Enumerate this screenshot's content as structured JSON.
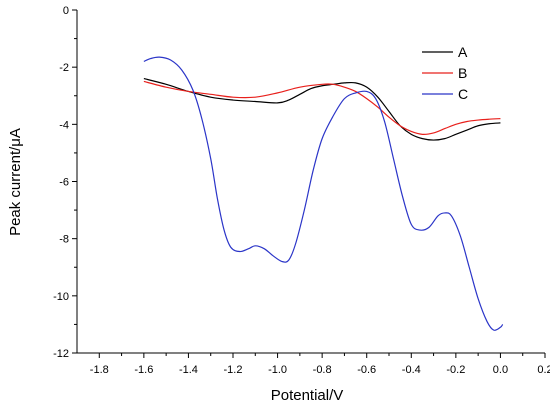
{
  "chart_data": {
    "type": "line",
    "xlabel": "Potential/V",
    "ylabel": "Peak current/μA",
    "xlim": [
      -1.9,
      0.2
    ],
    "ylim": [
      -12,
      0
    ],
    "x_ticks": [
      -1.8,
      -1.6,
      -1.4,
      -1.2,
      -1.0,
      -0.8,
      -0.6,
      -0.4,
      -0.2,
      0.0,
      0.2
    ],
    "x_tick_labels": [
      "-1.8",
      "-1.6",
      "-1.4",
      "-1.2",
      "-1.0",
      "-0.8",
      "-0.6",
      "-0.4",
      "-0.2",
      "0.0",
      "0.2"
    ],
    "y_ticks": [
      -12,
      -10,
      -8,
      -6,
      -4,
      -2,
      0
    ],
    "y_tick_labels": [
      "-12",
      "-10",
      "-8",
      "-6",
      "-4",
      "-2",
      "0"
    ],
    "grid": false,
    "legend_position": "top-right",
    "series": [
      {
        "name": "A",
        "color": "#000000",
        "points": [
          [
            -1.6,
            -2.4
          ],
          [
            -1.5,
            -2.6
          ],
          [
            -1.4,
            -2.85
          ],
          [
            -1.3,
            -3.05
          ],
          [
            -1.2,
            -3.15
          ],
          [
            -1.1,
            -3.2
          ],
          [
            -1.0,
            -3.25
          ],
          [
            -0.95,
            -3.15
          ],
          [
            -0.9,
            -2.95
          ],
          [
            -0.85,
            -2.75
          ],
          [
            -0.8,
            -2.65
          ],
          [
            -0.75,
            -2.6
          ],
          [
            -0.7,
            -2.55
          ],
          [
            -0.65,
            -2.55
          ],
          [
            -0.6,
            -2.7
          ],
          [
            -0.55,
            -3.05
          ],
          [
            -0.5,
            -3.55
          ],
          [
            -0.45,
            -4.05
          ],
          [
            -0.4,
            -4.35
          ],
          [
            -0.35,
            -4.5
          ],
          [
            -0.3,
            -4.55
          ],
          [
            -0.25,
            -4.5
          ],
          [
            -0.2,
            -4.35
          ],
          [
            -0.15,
            -4.2
          ],
          [
            -0.1,
            -4.05
          ],
          [
            -0.05,
            -3.98
          ],
          [
            0.0,
            -3.95
          ]
        ]
      },
      {
        "name": "B",
        "color": "#e8201c",
        "points": [
          [
            -1.6,
            -2.5
          ],
          [
            -1.5,
            -2.7
          ],
          [
            -1.4,
            -2.85
          ],
          [
            -1.3,
            -2.95
          ],
          [
            -1.2,
            -3.05
          ],
          [
            -1.1,
            -3.05
          ],
          [
            -1.0,
            -2.9
          ],
          [
            -0.9,
            -2.7
          ],
          [
            -0.8,
            -2.6
          ],
          [
            -0.75,
            -2.6
          ],
          [
            -0.7,
            -2.7
          ],
          [
            -0.65,
            -2.85
          ],
          [
            -0.6,
            -3.1
          ],
          [
            -0.55,
            -3.4
          ],
          [
            -0.5,
            -3.75
          ],
          [
            -0.45,
            -4.05
          ],
          [
            -0.4,
            -4.25
          ],
          [
            -0.35,
            -4.35
          ],
          [
            -0.3,
            -4.3
          ],
          [
            -0.25,
            -4.15
          ],
          [
            -0.2,
            -4.0
          ],
          [
            -0.15,
            -3.9
          ],
          [
            -0.1,
            -3.85
          ],
          [
            -0.05,
            -3.82
          ],
          [
            0.0,
            -3.8
          ]
        ]
      },
      {
        "name": "C",
        "color": "#2b35c8",
        "points": [
          [
            -1.6,
            -1.8
          ],
          [
            -1.57,
            -1.7
          ],
          [
            -1.53,
            -1.65
          ],
          [
            -1.48,
            -1.75
          ],
          [
            -1.43,
            -2.1
          ],
          [
            -1.38,
            -2.8
          ],
          [
            -1.34,
            -3.8
          ],
          [
            -1.3,
            -5.2
          ],
          [
            -1.27,
            -6.6
          ],
          [
            -1.24,
            -7.7
          ],
          [
            -1.21,
            -8.3
          ],
          [
            -1.17,
            -8.45
          ],
          [
            -1.13,
            -8.35
          ],
          [
            -1.1,
            -8.25
          ],
          [
            -1.06,
            -8.35
          ],
          [
            -1.02,
            -8.6
          ],
          [
            -0.98,
            -8.8
          ],
          [
            -0.95,
            -8.75
          ],
          [
            -0.92,
            -8.2
          ],
          [
            -0.88,
            -7.0
          ],
          [
            -0.84,
            -5.6
          ],
          [
            -0.8,
            -4.5
          ],
          [
            -0.75,
            -3.7
          ],
          [
            -0.7,
            -3.1
          ],
          [
            -0.65,
            -2.9
          ],
          [
            -0.6,
            -2.85
          ],
          [
            -0.56,
            -3.1
          ],
          [
            -0.52,
            -3.9
          ],
          [
            -0.48,
            -5.2
          ],
          [
            -0.44,
            -6.5
          ],
          [
            -0.4,
            -7.5
          ],
          [
            -0.36,
            -7.7
          ],
          [
            -0.32,
            -7.6
          ],
          [
            -0.28,
            -7.2
          ],
          [
            -0.25,
            -7.1
          ],
          [
            -0.22,
            -7.2
          ],
          [
            -0.18,
            -7.9
          ],
          [
            -0.14,
            -9.0
          ],
          [
            -0.1,
            -10.1
          ],
          [
            -0.06,
            -10.9
          ],
          [
            -0.03,
            -11.2
          ],
          [
            0.0,
            -11.1
          ],
          [
            0.01,
            -11.0
          ]
        ]
      }
    ]
  }
}
